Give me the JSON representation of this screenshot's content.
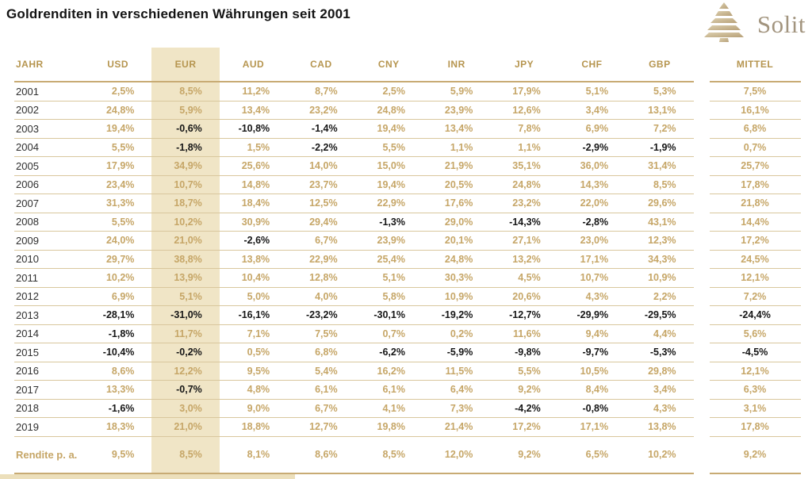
{
  "title": "Goldrenditen in verschiedenen Währungen seit 2001",
  "logo": {
    "text": "Solit",
    "icon": "step-pyramid-icon"
  },
  "colors": {
    "gold": "#c6a667",
    "gold_dark": "#b6954f",
    "negative": "#161616",
    "highlight": "#f0e5c6",
    "line": "#d9c79d",
    "line_strong": "#c8ab74",
    "strip": "#ecdfbb",
    "logo_tan_light": "#dccfae",
    "logo_tan_dark": "#b7a078"
  },
  "chart_data": {
    "type": "table",
    "title": "Goldrenditen in verschiedenen Währungen seit 2001",
    "columns": [
      "JAHR",
      "USD",
      "EUR",
      "AUD",
      "CAD",
      "CNY",
      "INR",
      "JPY",
      "CHF",
      "GBP",
      "MITTEL"
    ],
    "highlight_column": "EUR",
    "rows": [
      [
        "2001",
        "2,5%",
        "8,5%",
        "11,2%",
        "8,7%",
        "2,5%",
        "5,9%",
        "17,9%",
        "5,1%",
        "5,3%",
        "7,5%"
      ],
      [
        "2002",
        "24,8%",
        "5,9%",
        "13,4%",
        "23,2%",
        "24,8%",
        "23,9%",
        "12,6%",
        "3,4%",
        "13,1%",
        "16,1%"
      ],
      [
        "2003",
        "19,4%",
        "-0,6%",
        "-10,8%",
        "-1,4%",
        "19,4%",
        "13,4%",
        "7,8%",
        "6,9%",
        "7,2%",
        "6,8%"
      ],
      [
        "2004",
        "5,5%",
        "-1,8%",
        "1,5%",
        "-2,2%",
        "5,5%",
        "1,1%",
        "1,1%",
        "-2,9%",
        "-1,9%",
        "0,7%"
      ],
      [
        "2005",
        "17,9%",
        "34,9%",
        "25,6%",
        "14,0%",
        "15,0%",
        "21,9%",
        "35,1%",
        "36,0%",
        "31,4%",
        "25,7%"
      ],
      [
        "2006",
        "23,4%",
        "10,7%",
        "14,8%",
        "23,7%",
        "19,4%",
        "20,5%",
        "24,8%",
        "14,3%",
        "8,5%",
        "17,8%"
      ],
      [
        "2007",
        "31,3%",
        "18,7%",
        "18,4%",
        "12,5%",
        "22,9%",
        "17,6%",
        "23,2%",
        "22,0%",
        "29,6%",
        "21,8%"
      ],
      [
        "2008",
        "5,5%",
        "10,2%",
        "30,9%",
        "29,4%",
        "-1,3%",
        "29,0%",
        "-14,3%",
        "-2,8%",
        "43,1%",
        "14,4%"
      ],
      [
        "2009",
        "24,0%",
        "21,0%",
        "-2,6%",
        "6,7%",
        "23,9%",
        "20,1%",
        "27,1%",
        "23,0%",
        "12,3%",
        "17,2%"
      ],
      [
        "2010",
        "29,7%",
        "38,8%",
        "13,8%",
        "22,9%",
        "25,4%",
        "24,8%",
        "13,2%",
        "17,1%",
        "34,3%",
        "24,5%"
      ],
      [
        "2011",
        "10,2%",
        "13,9%",
        "10,4%",
        "12,8%",
        "5,1%",
        "30,3%",
        "4,5%",
        "10,7%",
        "10,9%",
        "12,1%"
      ],
      [
        "2012",
        "6,9%",
        "5,1%",
        "5,0%",
        "4,0%",
        "5,8%",
        "10,9%",
        "20,6%",
        "4,3%",
        "2,2%",
        "7,2%"
      ],
      [
        "2013",
        "-28,1%",
        "-31,0%",
        "-16,1%",
        "-23,2%",
        "-30,1%",
        "-19,2%",
        "-12,7%",
        "-29,9%",
        "-29,5%",
        "-24,4%"
      ],
      [
        "2014",
        "-1,8%",
        "11,7%",
        "7,1%",
        "7,5%",
        "0,7%",
        "0,2%",
        "11,6%",
        "9,4%",
        "4,4%",
        "5,6%"
      ],
      [
        "2015",
        "-10,4%",
        "-0,2%",
        "0,5%",
        "6,8%",
        "-6,2%",
        "-5,9%",
        "-9,8%",
        "-9,7%",
        "-5,3%",
        "-4,5%"
      ],
      [
        "2016",
        "8,6%",
        "12,2%",
        "9,5%",
        "5,4%",
        "16,2%",
        "11,5%",
        "5,5%",
        "10,5%",
        "29,8%",
        "12,1%"
      ],
      [
        "2017",
        "13,3%",
        "-0,7%",
        "4,8%",
        "6,1%",
        "6,1%",
        "6,4%",
        "9,2%",
        "8,4%",
        "3,4%",
        "6,3%"
      ],
      [
        "2018",
        "-1,6%",
        "3,0%",
        "9,0%",
        "6,7%",
        "4,1%",
        "7,3%",
        "-4,2%",
        "-0,8%",
        "4,3%",
        "3,1%"
      ],
      [
        "2019",
        "18,3%",
        "21,0%",
        "18,8%",
        "12,7%",
        "19,8%",
        "21,4%",
        "17,2%",
        "17,1%",
        "13,8%",
        "17,8%"
      ]
    ],
    "footer_row": [
      "Rendite p. a.",
      "9,5%",
      "8,5%",
      "8,1%",
      "8,6%",
      "8,5%",
      "12,0%",
      "9,2%",
      "6,5%",
      "10,2%",
      "9,2%"
    ]
  }
}
